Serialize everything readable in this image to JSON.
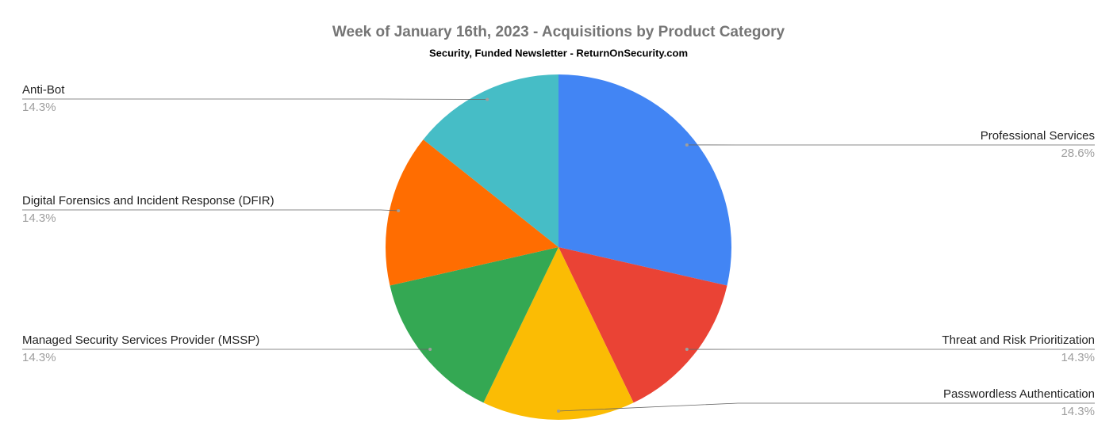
{
  "chart_data": {
    "type": "pie",
    "title": "Week of January 16th, 2023 - Acquisitions by Product Category",
    "subtitle": "Security, Funded Newsletter - ReturnOnSecurity.com",
    "categories": [
      "Professional Services",
      "Threat and Risk Prioritization",
      "Passwordless Authentication",
      "Managed Security Services Provider (MSSP)",
      "Digital Forensics and Incident Response (DFIR)",
      "Anti-Bot"
    ],
    "values": [
      28.6,
      14.3,
      14.3,
      14.3,
      14.3,
      14.3
    ],
    "value_labels": [
      "28.6%",
      "14.3%",
      "14.3%",
      "14.3%",
      "14.3%",
      "14.3%"
    ],
    "colors": [
      "#4285f4",
      "#ea4335",
      "#fbbc04",
      "#34a853",
      "#ff6d01",
      "#46bdc6"
    ]
  }
}
